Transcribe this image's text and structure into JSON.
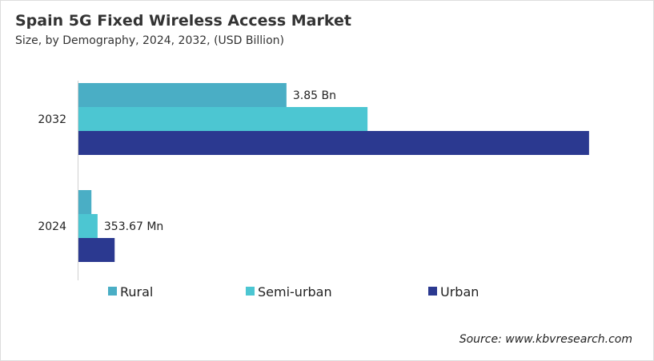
{
  "chart_data": {
    "type": "bar",
    "orientation": "horizontal",
    "title": "Spain 5G Fixed Wireless Access Market",
    "subtitle": "Size, by Demography, 2024, 2032, (USD Billion)",
    "categories": [
      "2032",
      "2024"
    ],
    "series": [
      {
        "name": "Rural",
        "color": "#4aaec5",
        "values": [
          3.85,
          0.24
        ]
      },
      {
        "name": "Semi-urban",
        "color": "#4cc6d2",
        "values": [
          5.35,
          0.354
        ]
      },
      {
        "name": "Urban",
        "color": "#2b3990",
        "values": [
          9.45,
          0.67
        ]
      }
    ],
    "data_labels": [
      {
        "category": "2032",
        "series": "Rural",
        "text": "3.85 Bn"
      },
      {
        "category": "2024",
        "series": "Semi-urban",
        "text": "353.67 Mn"
      }
    ],
    "xlim": [
      0,
      10
    ],
    "grid": false,
    "legend": "bottom"
  },
  "source": "Source: www.kbvresearch.com"
}
